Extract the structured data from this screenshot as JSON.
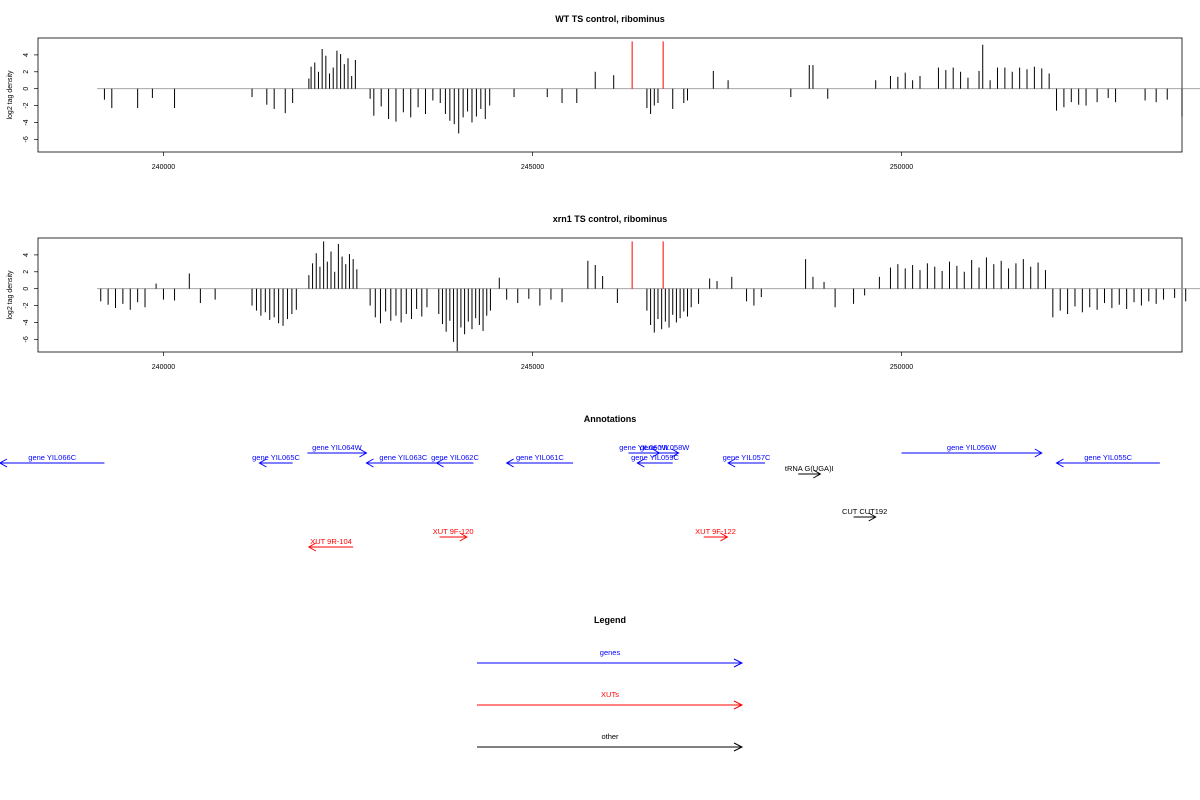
{
  "colors": {
    "gene": "#0000ff",
    "xut": "#ff0000",
    "other": "#000000",
    "marker": "#ff0000",
    "baseline": "#999999"
  },
  "chart_data": [
    {
      "type": "bar",
      "title": "WT TS control, ribominus",
      "ylabel": "log2 tag density",
      "xlim": [
        238300,
        253800
      ],
      "ylim": [
        -7.5,
        6
      ],
      "x_ticks": [
        240000,
        245000,
        250000
      ],
      "x_tick_labels": [
        "240000",
        "245000",
        "250000"
      ],
      "y_ticks": [
        -6,
        -4,
        -2,
        0,
        2,
        4
      ],
      "y_tick_labels": [
        "-6",
        "-4",
        "-2",
        "0",
        "2",
        "4"
      ],
      "x_range": [
        239100,
        254100
      ],
      "marker_x": [
        246350,
        246770
      ],
      "marker_y": 5.6,
      "series": [
        {
          "x": 239200,
          "y": -1.3
        },
        {
          "x": 239300,
          "y": -2.3
        },
        {
          "x": 239650,
          "y": -2.3
        },
        {
          "x": 239850,
          "y": -1.1
        },
        {
          "x": 240150,
          "y": -2.3
        },
        {
          "x": 241200,
          "y": -1.0
        },
        {
          "x": 241400,
          "y": -1.9
        },
        {
          "x": 241500,
          "y": -2.4
        },
        {
          "x": 241650,
          "y": -2.9
        },
        {
          "x": 241750,
          "y": -1.7
        },
        {
          "x": 241970,
          "y": 1.2
        },
        {
          "x": 242000,
          "y": 2.6
        },
        {
          "x": 242050,
          "y": 3.1
        },
        {
          "x": 242100,
          "y": 2.0
        },
        {
          "x": 242150,
          "y": 4.7
        },
        {
          "x": 242200,
          "y": 3.9
        },
        {
          "x": 242250,
          "y": 1.8
        },
        {
          "x": 242300,
          "y": 2.5
        },
        {
          "x": 242350,
          "y": 4.5
        },
        {
          "x": 242400,
          "y": 4.1
        },
        {
          "x": 242450,
          "y": 2.9
        },
        {
          "x": 242500,
          "y": 3.6
        },
        {
          "x": 242550,
          "y": 1.5
        },
        {
          "x": 242600,
          "y": 3.4
        },
        {
          "x": 242800,
          "y": -1.2
        },
        {
          "x": 242850,
          "y": -3.2
        },
        {
          "x": 242950,
          "y": -2.1
        },
        {
          "x": 243050,
          "y": -3.6
        },
        {
          "x": 243150,
          "y": -3.9
        },
        {
          "x": 243250,
          "y": -2.8
        },
        {
          "x": 243350,
          "y": -3.4
        },
        {
          "x": 243450,
          "y": -2.2
        },
        {
          "x": 243550,
          "y": -3.0
        },
        {
          "x": 243650,
          "y": -1.4
        },
        {
          "x": 243750,
          "y": -1.7
        },
        {
          "x": 243820,
          "y": -3.0
        },
        {
          "x": 243880,
          "y": -3.8
        },
        {
          "x": 243940,
          "y": -4.2
        },
        {
          "x": 244000,
          "y": -5.3
        },
        {
          "x": 244060,
          "y": -3.4
        },
        {
          "x": 244120,
          "y": -2.7
        },
        {
          "x": 244180,
          "y": -4.0
        },
        {
          "x": 244240,
          "y": -3.3
        },
        {
          "x": 244300,
          "y": -2.4
        },
        {
          "x": 244360,
          "y": -3.6
        },
        {
          "x": 244420,
          "y": -2.0
        },
        {
          "x": 244750,
          "y": -1.0
        },
        {
          "x": 245200,
          "y": -1.0
        },
        {
          "x": 245400,
          "y": -1.7
        },
        {
          "x": 245600,
          "y": -1.7
        },
        {
          "x": 245850,
          "y": 2.0
        },
        {
          "x": 246100,
          "y": 1.6
        },
        {
          "x": 246550,
          "y": -2.3
        },
        {
          "x": 246600,
          "y": -3.0
        },
        {
          "x": 246650,
          "y": -2.0
        },
        {
          "x": 246700,
          "y": -1.7
        },
        {
          "x": 246900,
          "y": -2.4
        },
        {
          "x": 247050,
          "y": -1.7
        },
        {
          "x": 247100,
          "y": -1.4
        },
        {
          "x": 247450,
          "y": 2.1
        },
        {
          "x": 247650,
          "y": 1.0
        },
        {
          "x": 248500,
          "y": -1.0
        },
        {
          "x": 248750,
          "y": 2.8
        },
        {
          "x": 248800,
          "y": 2.8
        },
        {
          "x": 249000,
          "y": -1.2
        },
        {
          "x": 249650,
          "y": 1.0
        },
        {
          "x": 249850,
          "y": 1.5
        },
        {
          "x": 249950,
          "y": 1.4
        },
        {
          "x": 250050,
          "y": 1.9
        },
        {
          "x": 250150,
          "y": 1.0
        },
        {
          "x": 250250,
          "y": 1.5
        },
        {
          "x": 250500,
          "y": 2.5
        },
        {
          "x": 250600,
          "y": 2.2
        },
        {
          "x": 250700,
          "y": 2.5
        },
        {
          "x": 250800,
          "y": 2.0
        },
        {
          "x": 250900,
          "y": 1.3
        },
        {
          "x": 251050,
          "y": 2.1
        },
        {
          "x": 251100,
          "y": 5.2
        },
        {
          "x": 251200,
          "y": 1.0
        },
        {
          "x": 251300,
          "y": 2.5
        },
        {
          "x": 251400,
          "y": 2.5
        },
        {
          "x": 251500,
          "y": 2.0
        },
        {
          "x": 251600,
          "y": 2.5
        },
        {
          "x": 251700,
          "y": 2.3
        },
        {
          "x": 251800,
          "y": 2.6
        },
        {
          "x": 251900,
          "y": 2.4
        },
        {
          "x": 252000,
          "y": 1.8
        },
        {
          "x": 252100,
          "y": -2.6
        },
        {
          "x": 252200,
          "y": -2.2
        },
        {
          "x": 252300,
          "y": -1.6
        },
        {
          "x": 252400,
          "y": -1.9
        },
        {
          "x": 252500,
          "y": -2.0
        },
        {
          "x": 252650,
          "y": -1.6
        },
        {
          "x": 252800,
          "y": -1.1
        },
        {
          "x": 252900,
          "y": -1.6
        },
        {
          "x": 253300,
          "y": -1.4
        },
        {
          "x": 253450,
          "y": -1.6
        },
        {
          "x": 253600,
          "y": -1.3
        },
        {
          "x": 253800,
          "y": -3.3
        }
      ]
    },
    {
      "type": "bar",
      "title": "xrn1 TS control, ribominus",
      "ylabel": "log2 tag density",
      "xlim": [
        238300,
        253800
      ],
      "ylim": [
        -7.5,
        6
      ],
      "x_ticks": [
        240000,
        245000,
        250000
      ],
      "x_tick_labels": [
        "240000",
        "245000",
        "250000"
      ],
      "y_ticks": [
        -6,
        -4,
        -2,
        0,
        2,
        4
      ],
      "y_tick_labels": [
        "-6",
        "-4",
        "-2",
        "0",
        "2",
        "4"
      ],
      "x_range": [
        239100,
        254100
      ],
      "marker_x": [
        246350,
        246770
      ],
      "marker_y": 5.6,
      "series": [
        {
          "x": 239150,
          "y": -1.5
        },
        {
          "x": 239250,
          "y": -1.9
        },
        {
          "x": 239350,
          "y": -2.3
        },
        {
          "x": 239450,
          "y": -1.8
        },
        {
          "x": 239550,
          "y": -2.5
        },
        {
          "x": 239650,
          "y": -1.6
        },
        {
          "x": 239750,
          "y": -2.2
        },
        {
          "x": 239900,
          "y": 0.6
        },
        {
          "x": 240000,
          "y": -1.3
        },
        {
          "x": 240150,
          "y": -1.4
        },
        {
          "x": 240350,
          "y": 1.8
        },
        {
          "x": 240500,
          "y": -1.7
        },
        {
          "x": 240700,
          "y": -1.3
        },
        {
          "x": 241200,
          "y": -2.0
        },
        {
          "x": 241260,
          "y": -2.6
        },
        {
          "x": 241320,
          "y": -3.2
        },
        {
          "x": 241380,
          "y": -2.8
        },
        {
          "x": 241440,
          "y": -3.7
        },
        {
          "x": 241500,
          "y": -3.4
        },
        {
          "x": 241560,
          "y": -4.1
        },
        {
          "x": 241620,
          "y": -4.4
        },
        {
          "x": 241680,
          "y": -3.6
        },
        {
          "x": 241740,
          "y": -3.0
        },
        {
          "x": 241800,
          "y": -2.5
        },
        {
          "x": 241970,
          "y": 1.6
        },
        {
          "x": 242020,
          "y": 3.0
        },
        {
          "x": 242070,
          "y": 4.2
        },
        {
          "x": 242120,
          "y": 2.6
        },
        {
          "x": 242170,
          "y": 5.6
        },
        {
          "x": 242220,
          "y": 3.2
        },
        {
          "x": 242270,
          "y": 4.4
        },
        {
          "x": 242320,
          "y": 2.0
        },
        {
          "x": 242370,
          "y": 5.3
        },
        {
          "x": 242420,
          "y": 3.8
        },
        {
          "x": 242470,
          "y": 2.9
        },
        {
          "x": 242520,
          "y": 4.1
        },
        {
          "x": 242570,
          "y": 3.5
        },
        {
          "x": 242620,
          "y": 2.3
        },
        {
          "x": 242800,
          "y": -2.0
        },
        {
          "x": 242870,
          "y": -3.4
        },
        {
          "x": 242940,
          "y": -4.1
        },
        {
          "x": 243010,
          "y": -2.7
        },
        {
          "x": 243080,
          "y": -3.8
        },
        {
          "x": 243150,
          "y": -3.2
        },
        {
          "x": 243220,
          "y": -4.0
        },
        {
          "x": 243290,
          "y": -3.0
        },
        {
          "x": 243360,
          "y": -3.6
        },
        {
          "x": 243430,
          "y": -2.4
        },
        {
          "x": 243500,
          "y": -3.3
        },
        {
          "x": 243570,
          "y": -2.2
        },
        {
          "x": 243730,
          "y": -3.0
        },
        {
          "x": 243780,
          "y": -4.2
        },
        {
          "x": 243830,
          "y": -5.1
        },
        {
          "x": 243880,
          "y": -3.8
        },
        {
          "x": 243930,
          "y": -6.3
        },
        {
          "x": 243980,
          "y": -7.4
        },
        {
          "x": 244030,
          "y": -4.6
        },
        {
          "x": 244080,
          "y": -5.4
        },
        {
          "x": 244130,
          "y": -3.9
        },
        {
          "x": 244180,
          "y": -4.8
        },
        {
          "x": 244230,
          "y": -3.5
        },
        {
          "x": 244280,
          "y": -4.3
        },
        {
          "x": 244330,
          "y": -5.0
        },
        {
          "x": 244380,
          "y": -3.2
        },
        {
          "x": 244430,
          "y": -2.6
        },
        {
          "x": 244550,
          "y": 1.3
        },
        {
          "x": 244650,
          "y": -1.3
        },
        {
          "x": 244800,
          "y": -1.7
        },
        {
          "x": 244950,
          "y": -1.2
        },
        {
          "x": 245100,
          "y": -2.0
        },
        {
          "x": 245250,
          "y": -1.3
        },
        {
          "x": 245400,
          "y": -1.6
        },
        {
          "x": 245750,
          "y": 3.3
        },
        {
          "x": 245850,
          "y": 2.8
        },
        {
          "x": 245950,
          "y": 1.5
        },
        {
          "x": 246150,
          "y": -1.7
        },
        {
          "x": 246550,
          "y": -2.6
        },
        {
          "x": 246600,
          "y": -4.3
        },
        {
          "x": 246650,
          "y": -5.2
        },
        {
          "x": 246700,
          "y": -3.6
        },
        {
          "x": 246750,
          "y": -4.8
        },
        {
          "x": 246800,
          "y": -3.9
        },
        {
          "x": 246850,
          "y": -4.6
        },
        {
          "x": 246900,
          "y": -3.1
        },
        {
          "x": 246950,
          "y": -4.0
        },
        {
          "x": 247000,
          "y": -3.5
        },
        {
          "x": 247050,
          "y": -2.7
        },
        {
          "x": 247100,
          "y": -3.3
        },
        {
          "x": 247150,
          "y": -2.2
        },
        {
          "x": 247250,
          "y": -1.8
        },
        {
          "x": 247400,
          "y": 1.2
        },
        {
          "x": 247500,
          "y": 0.9
        },
        {
          "x": 247700,
          "y": 1.4
        },
        {
          "x": 247900,
          "y": -1.5
        },
        {
          "x": 248000,
          "y": -2.0
        },
        {
          "x": 248100,
          "y": -1.0
        },
        {
          "x": 248700,
          "y": 3.5
        },
        {
          "x": 248800,
          "y": 1.4
        },
        {
          "x": 248950,
          "y": 0.8
        },
        {
          "x": 249100,
          "y": -2.2
        },
        {
          "x": 249350,
          "y": -1.8
        },
        {
          "x": 249500,
          "y": -0.8
        },
        {
          "x": 249700,
          "y": 1.4
        },
        {
          "x": 249850,
          "y": 2.5
        },
        {
          "x": 249950,
          "y": 2.9
        },
        {
          "x": 250050,
          "y": 2.4
        },
        {
          "x": 250150,
          "y": 2.8
        },
        {
          "x": 250250,
          "y": 2.2
        },
        {
          "x": 250350,
          "y": 3.0
        },
        {
          "x": 250450,
          "y": 2.6
        },
        {
          "x": 250550,
          "y": 2.1
        },
        {
          "x": 250650,
          "y": 3.2
        },
        {
          "x": 250750,
          "y": 2.7
        },
        {
          "x": 250850,
          "y": 2.0
        },
        {
          "x": 250950,
          "y": 3.4
        },
        {
          "x": 251050,
          "y": 2.5
        },
        {
          "x": 251150,
          "y": 3.7
        },
        {
          "x": 251250,
          "y": 2.9
        },
        {
          "x": 251350,
          "y": 3.3
        },
        {
          "x": 251450,
          "y": 2.4
        },
        {
          "x": 251550,
          "y": 3.0
        },
        {
          "x": 251650,
          "y": 3.5
        },
        {
          "x": 251750,
          "y": 2.6
        },
        {
          "x": 251850,
          "y": 3.1
        },
        {
          "x": 251950,
          "y": 2.2
        },
        {
          "x": 252050,
          "y": -3.4
        },
        {
          "x": 252150,
          "y": -2.6
        },
        {
          "x": 252250,
          "y": -3.0
        },
        {
          "x": 252350,
          "y": -2.1
        },
        {
          "x": 252450,
          "y": -2.8
        },
        {
          "x": 252550,
          "y": -2.2
        },
        {
          "x": 252650,
          "y": -2.5
        },
        {
          "x": 252750,
          "y": -1.7
        },
        {
          "x": 252850,
          "y": -2.3
        },
        {
          "x": 252950,
          "y": -1.9
        },
        {
          "x": 253050,
          "y": -2.4
        },
        {
          "x": 253150,
          "y": -1.6
        },
        {
          "x": 253250,
          "y": -2.0
        },
        {
          "x": 253350,
          "y": -1.5
        },
        {
          "x": 253450,
          "y": -1.8
        },
        {
          "x": 253550,
          "y": -1.3
        },
        {
          "x": 253700,
          "y": -1.1
        },
        {
          "x": 253850,
          "y": -1.5
        }
      ]
    }
  ],
  "annotations": {
    "title": "Annotations",
    "features": [
      {
        "label": "gene YIL066C",
        "kind": "gene",
        "start": 239200,
        "end": 237000,
        "row": 2
      },
      {
        "label": "gene YIL065C",
        "kind": "gene",
        "start": 241750,
        "end": 241300,
        "row": 2
      },
      {
        "label": "gene YIL064W",
        "kind": "gene",
        "start": 241950,
        "end": 242750,
        "row": 1
      },
      {
        "label": "gene YIL063C",
        "kind": "gene",
        "start": 243750,
        "end": 242750,
        "row": 2
      },
      {
        "label": "gene YIL062C",
        "kind": "gene",
        "start": 244200,
        "end": 243700,
        "row": 2
      },
      {
        "label": "gene YIL061C",
        "kind": "gene",
        "start": 245550,
        "end": 244650,
        "row": 2
      },
      {
        "label": "gene YIL060W",
        "kind": "gene",
        "start": 246300,
        "end": 246720,
        "row": 1
      },
      {
        "label": "gene YIL058W",
        "kind": "gene",
        "start": 246600,
        "end": 246980,
        "row": 1
      },
      {
        "label": "gene YIL059C",
        "kind": "gene",
        "start": 246900,
        "end": 246420,
        "row": 2
      },
      {
        "label": "gene YIL057C",
        "kind": "gene",
        "start": 248150,
        "end": 247650,
        "row": 2
      },
      {
        "label": "gene YIL056W",
        "kind": "gene",
        "start": 250000,
        "end": 251900,
        "row": 1
      },
      {
        "label": "gene YIL055C",
        "kind": "gene",
        "start": 253500,
        "end": 252100,
        "row": 2
      },
      {
        "label": "tRNA G(UGA)I",
        "kind": "other",
        "start": 248600,
        "end": 248900,
        "row": 3
      },
      {
        "label": "CUT CUT192",
        "kind": "other",
        "start": 249350,
        "end": 249650,
        "row": 4
      },
      {
        "label": "XUT 9F-120",
        "kind": "xut",
        "start": 243740,
        "end": 244110,
        "row": 5
      },
      {
        "label": "XUT 9F-122",
        "kind": "xut",
        "start": 247320,
        "end": 247640,
        "row": 5
      },
      {
        "label": "XUT 9R-104",
        "kind": "xut",
        "start": 242570,
        "end": 241970,
        "row": 6
      }
    ]
  },
  "legend": {
    "title": "Legend",
    "items": [
      {
        "label": "genes",
        "kind": "gene"
      },
      {
        "label": "XUTs",
        "kind": "xut"
      },
      {
        "label": "other",
        "kind": "other"
      }
    ]
  }
}
